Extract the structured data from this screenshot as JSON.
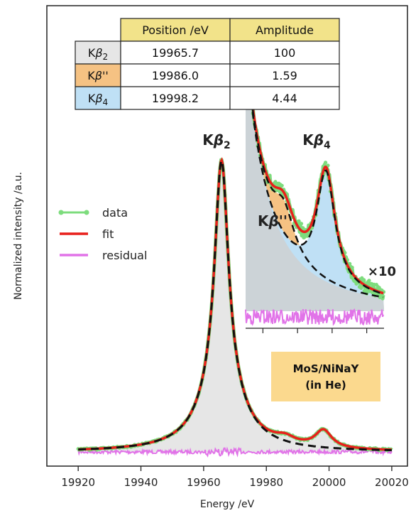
{
  "chart_data": {
    "type": "line",
    "xlabel": "Energy /eV",
    "ylabel": "Normalized intensity /a.u.",
    "xlim": [
      19910,
      20025
    ],
    "xticks": [
      "19920",
      "19940",
      "19960",
      "19980",
      "20000",
      "20020"
    ],
    "xtick_values": [
      19920,
      19940,
      19960,
      19980,
      20000,
      20020
    ],
    "ylim": [
      0,
      1.08
    ],
    "legend": {
      "placement": "center-left",
      "entries": [
        {
          "label": "data",
          "color": "#7ddc7d"
        },
        {
          "label": "fit",
          "color": "#e8201b"
        },
        {
          "label": "residual",
          "color": "#e173e8"
        }
      ]
    },
    "peaks": [
      {
        "name": "Kβ2",
        "position": 19965.7,
        "amplitude": 100,
        "fill": "#e6e6e6"
      },
      {
        "name": "Kβ''",
        "position": 19986.0,
        "amplitude": 1.59,
        "fill": "#f5c283"
      },
      {
        "name": "Kβ4",
        "position": 19998.2,
        "amplitude": 4.44,
        "fill": "#bfe0f5"
      }
    ],
    "table": {
      "headers": [
        "Position /eV",
        "Amplitude"
      ],
      "rows": [
        {
          "label": "Kβ2",
          "position": "19965.7",
          "amplitude": "100",
          "color": "#e6e6e6"
        },
        {
          "label": "Kβ''",
          "position": "19986.0",
          "amplitude": "1.59",
          "color": "#f5c283"
        },
        {
          "label": "Kβ4",
          "position": "19998.2",
          "amplitude": "4.44",
          "color": "#bfe0f5"
        }
      ],
      "header_color": "#f2e38a"
    },
    "annotations": {
      "main_peak": "Kβ2",
      "inset_peak_a": "Kβ''",
      "inset_peak_b": "Kβ4",
      "magnification": "×10",
      "sample": [
        "MoS/NiNaY",
        "(in He)"
      ],
      "sample_box_color": "#fbd98e"
    }
  }
}
